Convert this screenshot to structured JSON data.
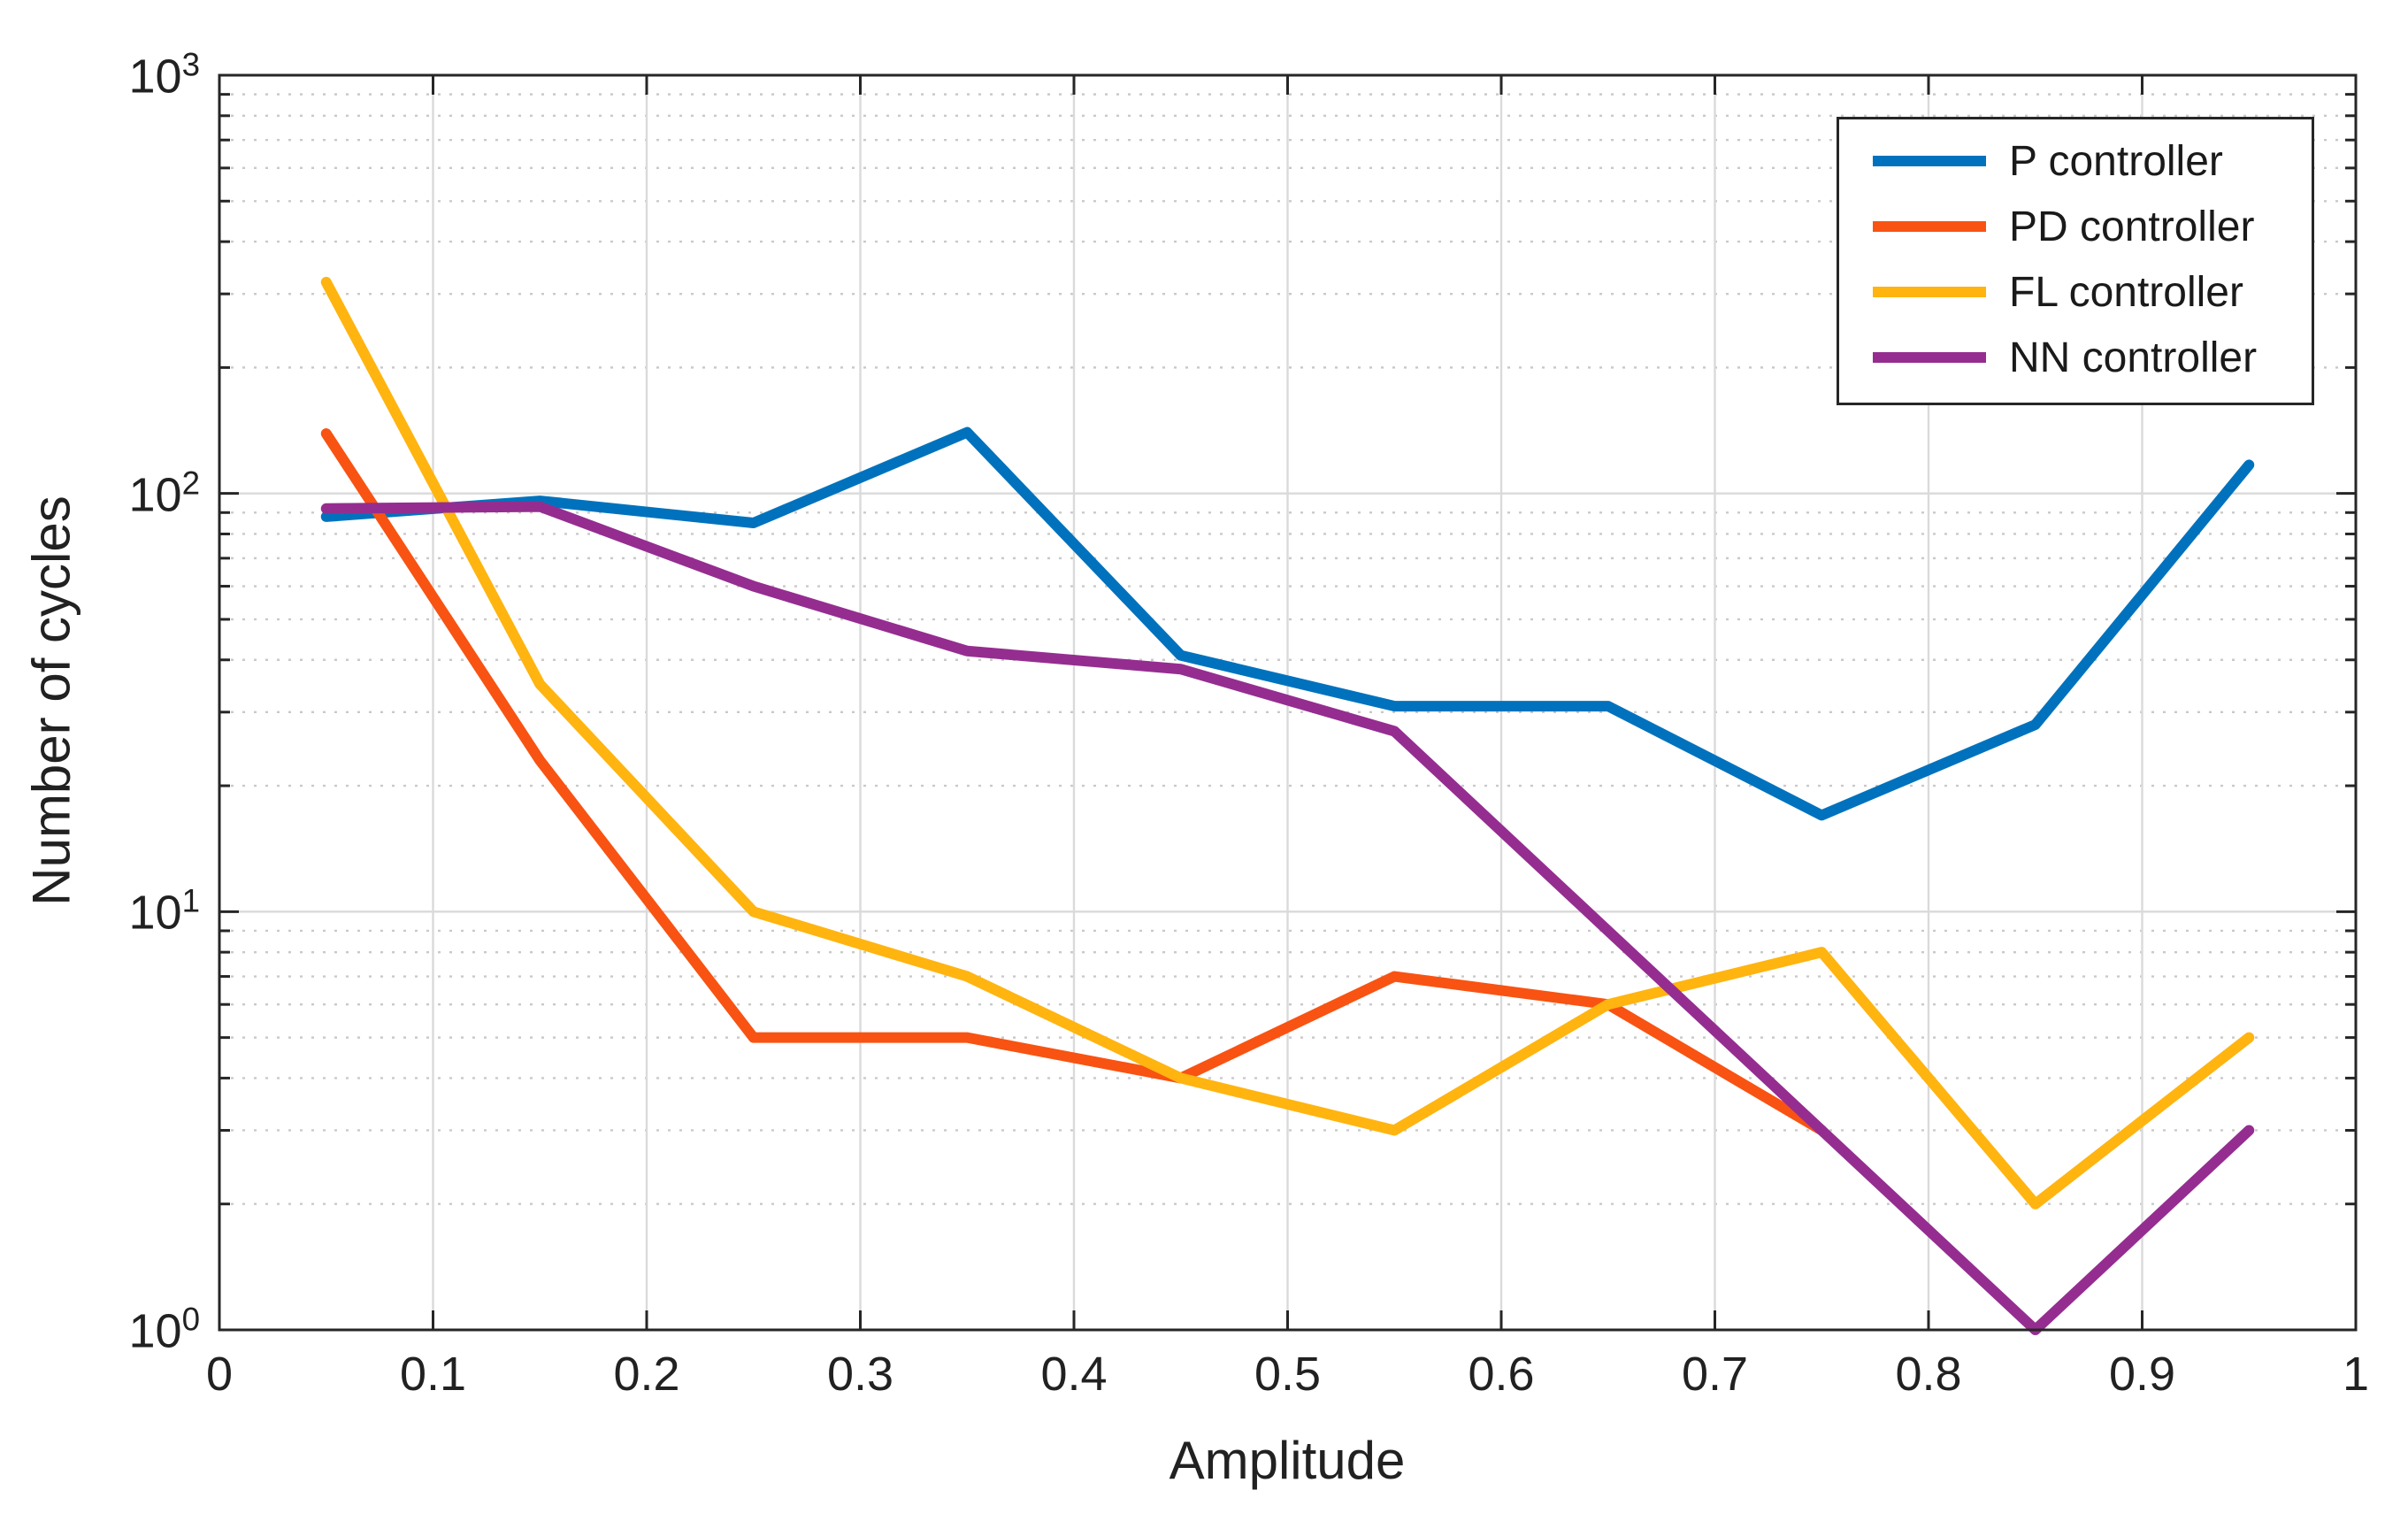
{
  "chart_data": {
    "type": "line",
    "xlabel": "Amplitude",
    "ylabel": "Number of cycles",
    "xlim": [
      0,
      1
    ],
    "ylim": [
      1,
      1000
    ],
    "y_scale": "log",
    "grid": {
      "major": true,
      "y_minor": true
    },
    "axes_color": "#262626",
    "major_grid_color": "#dadada",
    "minor_grid_color": "#c9c9c9",
    "x_ticks": [
      0,
      0.1,
      0.2,
      0.3,
      0.4,
      0.5,
      0.6,
      0.7,
      0.8,
      0.9,
      1
    ],
    "x_tick_labels": [
      "0",
      "0.1",
      "0.2",
      "0.3",
      "0.4",
      "0.5",
      "0.6",
      "0.7",
      "0.8",
      "0.9",
      "1"
    ],
    "y_ticks": [
      1,
      10,
      100,
      1000
    ],
    "y_tick_exponents": [
      0,
      1,
      2,
      3
    ],
    "legend": {
      "position": "northeast"
    },
    "series": [
      {
        "name": "P controller",
        "color": "#0072BD",
        "x": [
          0.05,
          0.15,
          0.25,
          0.35,
          0.45,
          0.55,
          0.65,
          0.75,
          0.85,
          0.95
        ],
        "y": [
          88,
          96,
          85,
          140,
          41,
          31,
          31,
          17,
          28,
          117
        ]
      },
      {
        "name": "PD controller",
        "color": "#F85312",
        "x": [
          0.05,
          0.15,
          0.25,
          0.35,
          0.45,
          0.55,
          0.65,
          0.75
        ],
        "y": [
          139,
          23,
          5,
          5,
          4,
          7,
          6,
          3
        ]
      },
      {
        "name": "FL controller",
        "color": "#FFB40F",
        "x": [
          0.05,
          0.15,
          0.25,
          0.35,
          0.45,
          0.55,
          0.65,
          0.75,
          0.85,
          0.95
        ],
        "y": [
          320,
          35,
          10,
          7,
          4,
          3,
          6,
          8,
          2,
          5
        ]
      },
      {
        "name": "NN controller",
        "color": "#952D90",
        "x": [
          0.05,
          0.15,
          0.25,
          0.35,
          0.45,
          0.55,
          0.65,
          0.75,
          0.85,
          0.95
        ],
        "y": [
          92,
          93,
          60,
          42,
          38,
          27,
          9,
          3,
          1,
          3
        ]
      }
    ]
  }
}
